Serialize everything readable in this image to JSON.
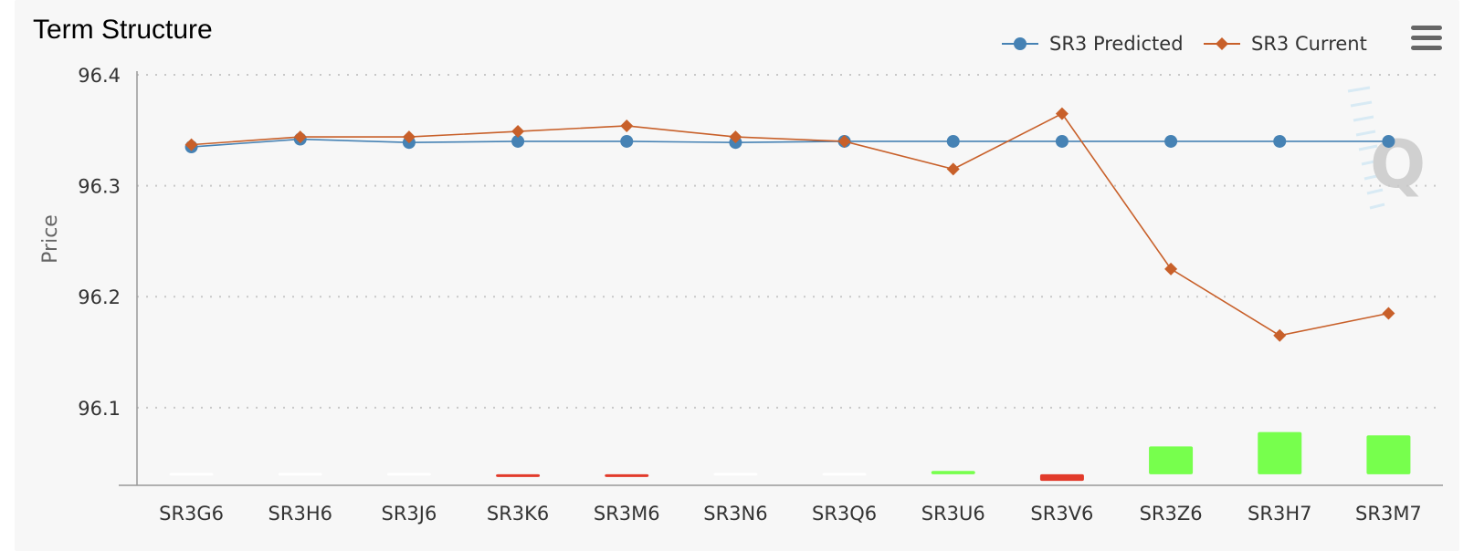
{
  "chart_data": {
    "type": "line",
    "title": "Term Structure",
    "ylabel": "Price",
    "xlabel": "",
    "ylim": [
      96.03,
      96.4
    ],
    "yticks": [
      96.1,
      96.2,
      96.3,
      96.4
    ],
    "ytick_labels": [
      "96.1",
      "96.2",
      "96.3",
      "96.4"
    ],
    "grid": "horizontal dotted",
    "legend": "top-right",
    "categories": [
      "SR3G6",
      "SR3H6",
      "SR3J6",
      "SR3K6",
      "SR3M6",
      "SR3N6",
      "SR3Q6",
      "SR3U6",
      "SR3V6",
      "SR3Z6",
      "SR3H7",
      "SR3M7"
    ],
    "series": [
      {
        "name": "SR3 Predicted",
        "marker": "circle",
        "color": "#4682b4",
        "values": [
          96.335,
          96.342,
          96.339,
          96.34,
          96.34,
          96.339,
          96.34,
          96.34,
          96.34,
          96.34,
          96.34,
          96.34
        ]
      },
      {
        "name": "SR3 Current",
        "marker": "diamond",
        "color": "#c8602a",
        "values": [
          96.337,
          96.344,
          96.344,
          96.349,
          96.354,
          96.344,
          96.34,
          96.315,
          96.365,
          96.225,
          96.165,
          96.185
        ]
      }
    ],
    "difference_bars": {
      "baseline": 96.04,
      "values": [
        0.0,
        0.0,
        0.0,
        -0.002,
        -0.002,
        0.0,
        0.0,
        0.003,
        -0.006,
        0.025,
        0.038,
        0.035
      ],
      "positive_color": "#77ff4d",
      "negative_color": "#e23b2b",
      "zero_color": "#ffffff"
    }
  },
  "toolbar": {
    "menu_icon": "hamburger-menu-icon"
  },
  "watermark": {
    "icon": "q-logo-watermark"
  }
}
